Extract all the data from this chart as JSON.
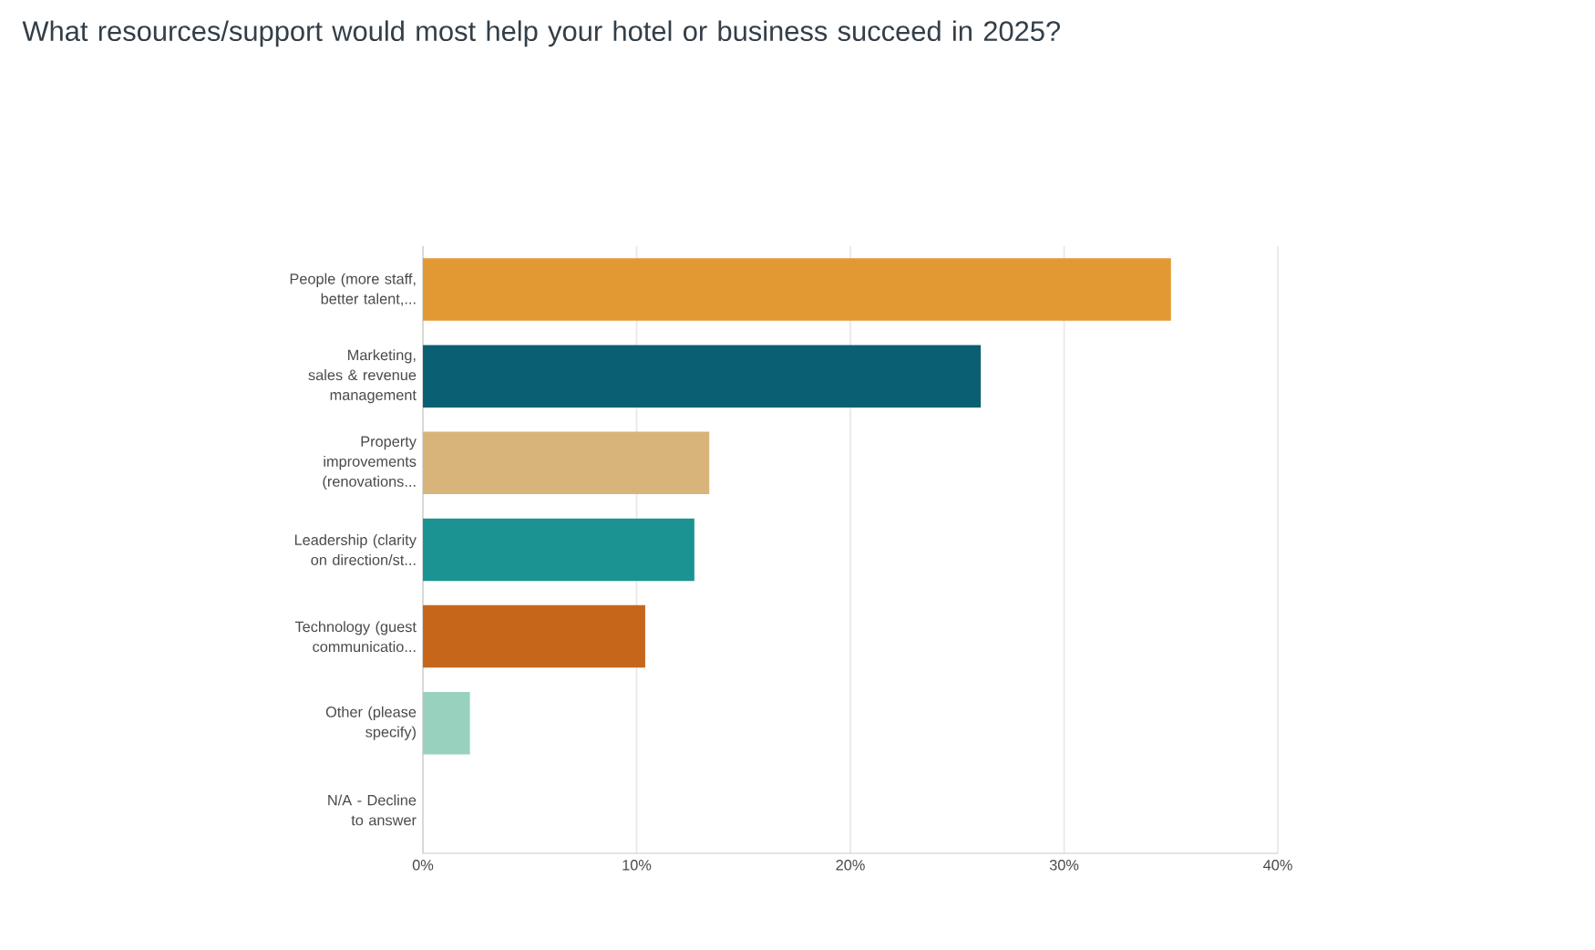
{
  "chart_data": {
    "type": "bar",
    "orientation": "horizontal",
    "title": "What resources/support would most help your hotel or business succeed in 2025?",
    "categories": [
      "People (more staff, better talent,...",
      "Marketing, sales & revenue management",
      "Property improvements (renovations...",
      "Leadership (clarity on direction/st...",
      "Technology (guest communicatio...",
      "Other (please specify)",
      "N/A - Decline to answer"
    ],
    "values": [
      35.0,
      26.1,
      13.4,
      12.7,
      10.4,
      2.2,
      0
    ],
    "colors": [
      "#e39933",
      "#0b5f73",
      "#d9b47a",
      "#1a9392",
      "#c6661b",
      "#98d2be",
      "#dddddd"
    ],
    "xlim": [
      0,
      40
    ],
    "xticks": [
      {
        "value": 0,
        "label": "0%"
      },
      {
        "value": 10,
        "label": "10%"
      },
      {
        "value": 20,
        "label": "20%"
      },
      {
        "value": 30,
        "label": "30%"
      },
      {
        "value": 40,
        "label": "40%"
      }
    ],
    "grid": "x"
  }
}
